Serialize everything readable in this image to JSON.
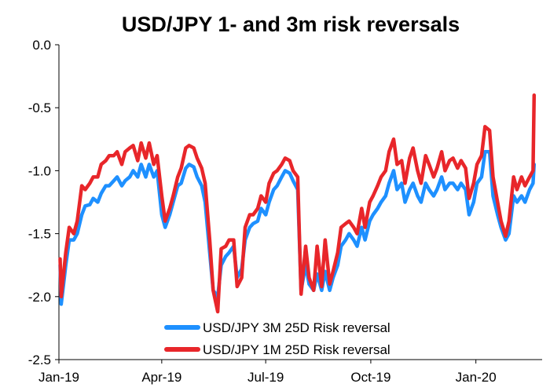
{
  "chart_data": {
    "type": "line",
    "title": "USD/JPY 1- and 3m risk reversals",
    "xlabel": "",
    "ylabel": "",
    "ylim": [
      -2.5,
      0.0
    ],
    "yticks": [
      "0.0",
      "-0.5",
      "-1.0",
      "-1.5",
      "-2.0",
      "-2.5"
    ],
    "ytick_values": [
      0.0,
      -0.5,
      -1.0,
      -1.5,
      -2.0,
      -2.5
    ],
    "xlim": [
      "2019-01-01",
      "2020-02-28"
    ],
    "xticks": [
      {
        "label": "Jan-19",
        "date": "2019-01-01"
      },
      {
        "label": "Apr-19",
        "date": "2019-04-01"
      },
      {
        "label": "Jul-19",
        "date": "2019-07-01"
      },
      {
        "label": "Oct-19",
        "date": "2019-10-01"
      },
      {
        "label": "Jan-20",
        "date": "2020-01-01"
      }
    ],
    "grid": false,
    "legend_position": "bottom-center",
    "series": [
      {
        "name": "USD/JPY 3M 25D Risk reversal",
        "color": "#1E90FF",
        "points": [
          [
            "2019-01-02",
            -1.75
          ],
          [
            "2019-01-03",
            -2.06
          ],
          [
            "2019-01-07",
            -1.75
          ],
          [
            "2019-01-10",
            -1.55
          ],
          [
            "2019-01-14",
            -1.55
          ],
          [
            "2019-01-17",
            -1.5
          ],
          [
            "2019-01-21",
            -1.35
          ],
          [
            "2019-01-24",
            -1.28
          ],
          [
            "2019-01-28",
            -1.27
          ],
          [
            "2019-01-31",
            -1.22
          ],
          [
            "2019-02-04",
            -1.25
          ],
          [
            "2019-02-07",
            -1.18
          ],
          [
            "2019-02-11",
            -1.12
          ],
          [
            "2019-02-14",
            -1.12
          ],
          [
            "2019-02-18",
            -1.08
          ],
          [
            "2019-02-21",
            -1.05
          ],
          [
            "2019-02-25",
            -1.12
          ],
          [
            "2019-02-28",
            -1.08
          ],
          [
            "2019-03-04",
            -1.05
          ],
          [
            "2019-03-07",
            -1.0
          ],
          [
            "2019-03-11",
            -1.05
          ],
          [
            "2019-03-14",
            -0.95
          ],
          [
            "2019-03-18",
            -1.05
          ],
          [
            "2019-03-21",
            -0.95
          ],
          [
            "2019-03-25",
            -1.05
          ],
          [
            "2019-03-28",
            -1.0
          ],
          [
            "2019-04-01",
            -1.35
          ],
          [
            "2019-04-04",
            -1.45
          ],
          [
            "2019-04-08",
            -1.35
          ],
          [
            "2019-04-11",
            -1.25
          ],
          [
            "2019-04-15",
            -1.12
          ],
          [
            "2019-04-18",
            -1.1
          ],
          [
            "2019-04-22",
            -0.98
          ],
          [
            "2019-04-25",
            -0.95
          ],
          [
            "2019-04-29",
            -0.97
          ],
          [
            "2019-05-02",
            -1.05
          ],
          [
            "2019-05-06",
            -1.12
          ],
          [
            "2019-05-09",
            -1.25
          ],
          [
            "2019-05-13",
            -1.65
          ],
          [
            "2019-05-16",
            -1.95
          ],
          [
            "2019-05-20",
            -2.0
          ],
          [
            "2019-05-23",
            -1.75
          ],
          [
            "2019-05-27",
            -1.68
          ],
          [
            "2019-05-30",
            -1.65
          ],
          [
            "2019-06-03",
            -1.6
          ],
          [
            "2019-06-06",
            -1.85
          ],
          [
            "2019-06-10",
            -1.78
          ],
          [
            "2019-06-13",
            -1.55
          ],
          [
            "2019-06-17",
            -1.45
          ],
          [
            "2019-06-20",
            -1.42
          ],
          [
            "2019-06-24",
            -1.4
          ],
          [
            "2019-06-27",
            -1.3
          ],
          [
            "2019-07-01",
            -1.35
          ],
          [
            "2019-07-04",
            -1.25
          ],
          [
            "2019-07-08",
            -1.15
          ],
          [
            "2019-07-11",
            -1.12
          ],
          [
            "2019-07-15",
            -1.05
          ],
          [
            "2019-07-18",
            -1.0
          ],
          [
            "2019-07-22",
            -1.02
          ],
          [
            "2019-07-25",
            -1.08
          ],
          [
            "2019-07-29",
            -1.15
          ],
          [
            "2019-08-01",
            -1.95
          ],
          [
            "2019-08-05",
            -1.75
          ],
          [
            "2019-08-08",
            -1.9
          ],
          [
            "2019-08-12",
            -1.95
          ],
          [
            "2019-08-15",
            -1.82
          ],
          [
            "2019-08-19",
            -1.95
          ],
          [
            "2019-08-22",
            -1.8
          ],
          [
            "2019-08-26",
            -1.95
          ],
          [
            "2019-08-29",
            -1.85
          ],
          [
            "2019-09-02",
            -1.75
          ],
          [
            "2019-09-05",
            -1.6
          ],
          [
            "2019-09-09",
            -1.55
          ],
          [
            "2019-09-12",
            -1.5
          ],
          [
            "2019-09-16",
            -1.55
          ],
          [
            "2019-09-19",
            -1.6
          ],
          [
            "2019-09-23",
            -1.45
          ],
          [
            "2019-09-26",
            -1.55
          ],
          [
            "2019-09-30",
            -1.4
          ],
          [
            "2019-10-03",
            -1.35
          ],
          [
            "2019-10-07",
            -1.3
          ],
          [
            "2019-10-10",
            -1.25
          ],
          [
            "2019-10-14",
            -1.2
          ],
          [
            "2019-10-17",
            -1.1
          ],
          [
            "2019-10-21",
            -1.0
          ],
          [
            "2019-10-24",
            -1.15
          ],
          [
            "2019-10-28",
            -1.1
          ],
          [
            "2019-10-31",
            -1.25
          ],
          [
            "2019-11-04",
            -1.15
          ],
          [
            "2019-11-07",
            -1.1
          ],
          [
            "2019-11-11",
            -1.2
          ],
          [
            "2019-11-14",
            -1.25
          ],
          [
            "2019-11-18",
            -1.1
          ],
          [
            "2019-11-21",
            -1.15
          ],
          [
            "2019-11-25",
            -1.2
          ],
          [
            "2019-11-28",
            -1.15
          ],
          [
            "2019-12-02",
            -1.05
          ],
          [
            "2019-12-05",
            -1.15
          ],
          [
            "2019-12-09",
            -1.1
          ],
          [
            "2019-12-12",
            -1.1
          ],
          [
            "2019-12-16",
            -1.15
          ],
          [
            "2019-12-19",
            -1.1
          ],
          [
            "2019-12-23",
            -1.15
          ],
          [
            "2019-12-26",
            -1.35
          ],
          [
            "2019-12-30",
            -1.25
          ],
          [
            "2020-01-02",
            -1.1
          ],
          [
            "2020-01-06",
            -1.05
          ],
          [
            "2020-01-09",
            -0.85
          ],
          [
            "2020-01-13",
            -0.85
          ],
          [
            "2020-01-16",
            -1.2
          ],
          [
            "2020-01-20",
            -1.35
          ],
          [
            "2020-01-23",
            -1.45
          ],
          [
            "2020-01-27",
            -1.55
          ],
          [
            "2020-01-30",
            -1.5
          ],
          [
            "2020-02-03",
            -1.2
          ],
          [
            "2020-02-06",
            -1.25
          ],
          [
            "2020-02-10",
            -1.2
          ],
          [
            "2020-02-13",
            -1.25
          ],
          [
            "2020-02-17",
            -1.15
          ],
          [
            "2020-02-20",
            -1.1
          ],
          [
            "2020-02-21",
            -0.95
          ]
        ]
      },
      {
        "name": "USD/JPY 1M 25D Risk reversal",
        "color": "#E8262A",
        "points": [
          [
            "2019-01-02",
            -1.7
          ],
          [
            "2019-01-03",
            -2.0
          ],
          [
            "2019-01-07",
            -1.65
          ],
          [
            "2019-01-10",
            -1.45
          ],
          [
            "2019-01-14",
            -1.5
          ],
          [
            "2019-01-17",
            -1.4
          ],
          [
            "2019-01-21",
            -1.12
          ],
          [
            "2019-01-24",
            -1.15
          ],
          [
            "2019-01-28",
            -1.1
          ],
          [
            "2019-01-31",
            -1.05
          ],
          [
            "2019-02-04",
            -1.05
          ],
          [
            "2019-02-07",
            -0.95
          ],
          [
            "2019-02-11",
            -0.92
          ],
          [
            "2019-02-14",
            -0.88
          ],
          [
            "2019-02-18",
            -0.88
          ],
          [
            "2019-02-21",
            -0.85
          ],
          [
            "2019-02-25",
            -0.95
          ],
          [
            "2019-02-28",
            -0.85
          ],
          [
            "2019-03-04",
            -0.82
          ],
          [
            "2019-03-07",
            -0.8
          ],
          [
            "2019-03-11",
            -0.92
          ],
          [
            "2019-03-14",
            -0.78
          ],
          [
            "2019-03-18",
            -0.9
          ],
          [
            "2019-03-21",
            -0.78
          ],
          [
            "2019-03-25",
            -0.95
          ],
          [
            "2019-03-28",
            -0.88
          ],
          [
            "2019-04-01",
            -1.2
          ],
          [
            "2019-04-04",
            -1.4
          ],
          [
            "2019-04-08",
            -1.3
          ],
          [
            "2019-04-11",
            -1.2
          ],
          [
            "2019-04-15",
            -1.05
          ],
          [
            "2019-04-18",
            -0.98
          ],
          [
            "2019-04-22",
            -0.82
          ],
          [
            "2019-04-25",
            -0.8
          ],
          [
            "2019-04-29",
            -0.82
          ],
          [
            "2019-05-02",
            -0.9
          ],
          [
            "2019-05-06",
            -0.98
          ],
          [
            "2019-05-09",
            -1.1
          ],
          [
            "2019-05-13",
            -1.55
          ],
          [
            "2019-05-16",
            -1.95
          ],
          [
            "2019-05-20",
            -2.12
          ],
          [
            "2019-05-23",
            -1.62
          ],
          [
            "2019-05-27",
            -1.6
          ],
          [
            "2019-05-30",
            -1.55
          ],
          [
            "2019-06-03",
            -1.55
          ],
          [
            "2019-06-06",
            -1.92
          ],
          [
            "2019-06-10",
            -1.85
          ],
          [
            "2019-06-13",
            -1.45
          ],
          [
            "2019-06-17",
            -1.35
          ],
          [
            "2019-06-20",
            -1.35
          ],
          [
            "2019-06-24",
            -1.3
          ],
          [
            "2019-06-27",
            -1.2
          ],
          [
            "2019-07-01",
            -1.25
          ],
          [
            "2019-07-04",
            -1.1
          ],
          [
            "2019-07-08",
            -1.02
          ],
          [
            "2019-07-11",
            -1.0
          ],
          [
            "2019-07-15",
            -0.95
          ],
          [
            "2019-07-18",
            -0.9
          ],
          [
            "2019-07-22",
            -0.92
          ],
          [
            "2019-07-25",
            -1.0
          ],
          [
            "2019-07-29",
            -1.05
          ],
          [
            "2019-08-01",
            -1.98
          ],
          [
            "2019-08-05",
            -1.6
          ],
          [
            "2019-08-08",
            -1.85
          ],
          [
            "2019-08-12",
            -1.95
          ],
          [
            "2019-08-15",
            -1.6
          ],
          [
            "2019-08-19",
            -1.92
          ],
          [
            "2019-08-22",
            -1.55
          ],
          [
            "2019-08-26",
            -1.9
          ],
          [
            "2019-08-29",
            -1.8
          ],
          [
            "2019-09-02",
            -1.65
          ],
          [
            "2019-09-05",
            -1.45
          ],
          [
            "2019-09-09",
            -1.42
          ],
          [
            "2019-09-12",
            -1.4
          ],
          [
            "2019-09-16",
            -1.45
          ],
          [
            "2019-09-19",
            -1.5
          ],
          [
            "2019-09-23",
            -1.3
          ],
          [
            "2019-09-26",
            -1.45
          ],
          [
            "2019-09-30",
            -1.25
          ],
          [
            "2019-10-03",
            -1.2
          ],
          [
            "2019-10-07",
            -1.12
          ],
          [
            "2019-10-10",
            -1.05
          ],
          [
            "2019-10-14",
            -1.0
          ],
          [
            "2019-10-17",
            -0.85
          ],
          [
            "2019-10-21",
            -0.75
          ],
          [
            "2019-10-24",
            -0.95
          ],
          [
            "2019-10-28",
            -0.92
          ],
          [
            "2019-10-31",
            -1.1
          ],
          [
            "2019-11-04",
            -0.9
          ],
          [
            "2019-11-07",
            -0.82
          ],
          [
            "2019-11-11",
            -1.0
          ],
          [
            "2019-11-14",
            -1.1
          ],
          [
            "2019-11-18",
            -0.88
          ],
          [
            "2019-11-21",
            -0.95
          ],
          [
            "2019-11-25",
            -1.05
          ],
          [
            "2019-11-28",
            -0.98
          ],
          [
            "2019-12-02",
            -0.85
          ],
          [
            "2019-12-05",
            -1.0
          ],
          [
            "2019-12-09",
            -0.92
          ],
          [
            "2019-12-12",
            -0.9
          ],
          [
            "2019-12-16",
            -0.98
          ],
          [
            "2019-12-19",
            -0.92
          ],
          [
            "2019-12-23",
            -0.98
          ],
          [
            "2019-12-26",
            -1.22
          ],
          [
            "2019-12-30",
            -1.1
          ],
          [
            "2020-01-02",
            -0.95
          ],
          [
            "2020-01-06",
            -0.88
          ],
          [
            "2020-01-09",
            -0.65
          ],
          [
            "2020-01-13",
            -0.68
          ],
          [
            "2020-01-16",
            -1.05
          ],
          [
            "2020-01-20",
            -1.25
          ],
          [
            "2020-01-23",
            -1.4
          ],
          [
            "2020-01-27",
            -1.52
          ],
          [
            "2020-01-30",
            -1.4
          ],
          [
            "2020-02-03",
            -1.05
          ],
          [
            "2020-02-06",
            -1.15
          ],
          [
            "2020-02-10",
            -1.05
          ],
          [
            "2020-02-13",
            -1.12
          ],
          [
            "2020-02-17",
            -1.05
          ],
          [
            "2020-02-20",
            -1.0
          ],
          [
            "2020-02-21",
            -0.4
          ]
        ]
      }
    ]
  }
}
